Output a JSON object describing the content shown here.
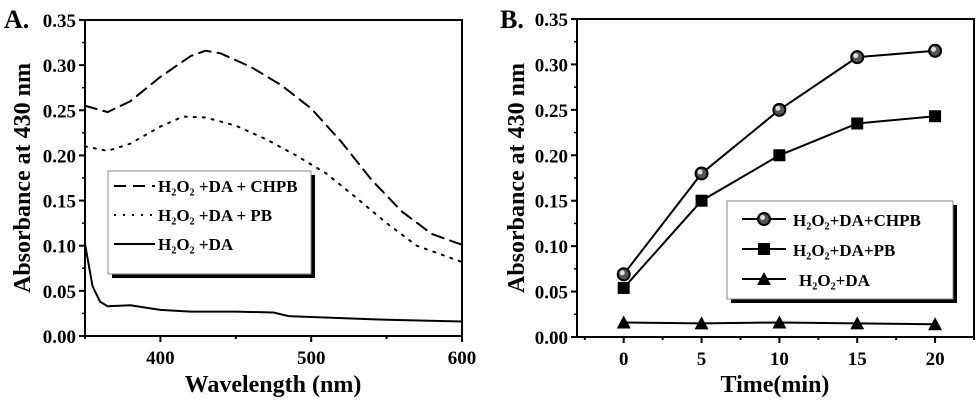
{
  "chart_data": [
    {
      "type": "line",
      "panel_label": "A.",
      "xlabel": "Wavelength (nm)",
      "ylabel": "Absorbance at 430 nm",
      "xlim": [
        350,
        600
      ],
      "ylim": [
        0,
        0.35
      ],
      "xticks": [
        400,
        500,
        600
      ],
      "xtick_labels": [
        "400",
        "500",
        "600"
      ],
      "yticks": [
        0,
        0.05,
        0.1,
        0.15,
        0.2,
        0.25,
        0.3,
        0.35
      ],
      "ytick_labels": [
        "0.00",
        "0.05",
        "0.10",
        "0.15",
        "0.20",
        "0.25",
        "0.30",
        "0.35"
      ],
      "grid": false,
      "legend_placement": "center-left",
      "series": [
        {
          "name": "H₂O₂ +DA + CHPB",
          "style": "dashed",
          "x": [
            350,
            365,
            380,
            400,
            420,
            430,
            440,
            460,
            480,
            500,
            520,
            540,
            560,
            580,
            600
          ],
          "y": [
            0.255,
            0.248,
            0.26,
            0.287,
            0.31,
            0.316,
            0.313,
            0.298,
            0.278,
            0.252,
            0.215,
            0.173,
            0.138,
            0.113,
            0.101
          ]
        },
        {
          "name": "H₂O₂ +DA + PB",
          "style": "dotted",
          "x": [
            350,
            365,
            380,
            400,
            415,
            430,
            450,
            470,
            490,
            510,
            530,
            550,
            570,
            590,
            600
          ],
          "y": [
            0.21,
            0.205,
            0.213,
            0.232,
            0.243,
            0.242,
            0.233,
            0.218,
            0.2,
            0.18,
            0.153,
            0.125,
            0.1,
            0.088,
            0.082
          ]
        },
        {
          "name": "H₂O₂ +DA",
          "style": "solid",
          "x": [
            350,
            355,
            360,
            365,
            380,
            400,
            420,
            450,
            475,
            485,
            500,
            550,
            600
          ],
          "y": [
            0.102,
            0.055,
            0.038,
            0.033,
            0.034,
            0.029,
            0.027,
            0.027,
            0.026,
            0.022,
            0.021,
            0.018,
            0.016
          ]
        }
      ]
    },
    {
      "type": "line",
      "panel_label": "B.",
      "xlabel": "Time(min)",
      "ylabel": "Absorbance at 430 nm",
      "xlim": [
        -3,
        22.5
      ],
      "ylim": [
        0,
        0.35
      ],
      "xticks": [
        0,
        5,
        10,
        15,
        20
      ],
      "xtick_labels": [
        "0",
        "5",
        "10",
        "15",
        "20"
      ],
      "yticks": [
        0,
        0.05,
        0.1,
        0.15,
        0.2,
        0.25,
        0.3,
        0.35
      ],
      "ytick_labels": [
        "0.00",
        "0.05",
        "0.10",
        "0.15",
        "0.20",
        "0.25",
        "0.30",
        "0.35"
      ],
      "grid": false,
      "legend_placement": "bottom-right",
      "x": [
        0,
        5,
        10,
        15,
        20
      ],
      "series": [
        {
          "name": "H₂O₂+DA+CHPB",
          "marker": "circle",
          "values": [
            0.069,
            0.18,
            0.25,
            0.308,
            0.315
          ]
        },
        {
          "name": "H₂O₂+DA+PB",
          "marker": "square",
          "values": [
            0.054,
            0.15,
            0.2,
            0.235,
            0.243
          ]
        },
        {
          "name": "H₂O₂+DA",
          "marker": "triangle",
          "values": [
            0.016,
            0.015,
            0.016,
            0.015,
            0.014
          ]
        }
      ]
    }
  ]
}
